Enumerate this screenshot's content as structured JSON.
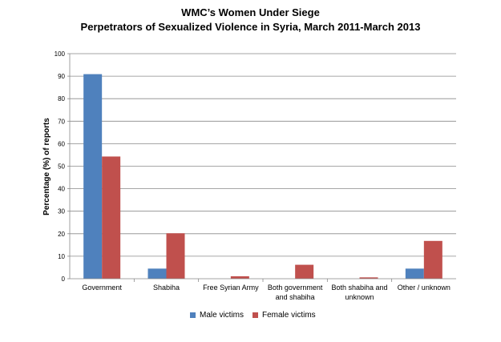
{
  "chart_data": {
    "type": "bar",
    "title": "WMC’s Women Under Siege",
    "subtitle": "Perpetrators of Sexualized Violence in Syria, March 2011-March 2013",
    "ylabel": "Percentage (%) of reports",
    "xlabel": "",
    "ylim": [
      0,
      100
    ],
    "yticks": [
      0,
      10,
      20,
      30,
      40,
      50,
      60,
      70,
      80,
      90,
      100
    ],
    "grid": true,
    "legend_position": "bottom",
    "categories": [
      [
        "Government"
      ],
      [
        "Shabiha"
      ],
      [
        "Free Syrian Army"
      ],
      [
        "Both government",
        "and shabiha"
      ],
      [
        "Both shabiha and",
        "unknown"
      ],
      [
        "Other / unknown"
      ]
    ],
    "series": [
      {
        "name": "Male victims",
        "color": "#4f81bd",
        "values": [
          90.9,
          4.5,
          0,
          0,
          0,
          4.5
        ]
      },
      {
        "name": "Female victims",
        "color": "#c0504d",
        "values": [
          54.3,
          20.2,
          1.1,
          6.2,
          0.6,
          16.8
        ]
      }
    ]
  }
}
